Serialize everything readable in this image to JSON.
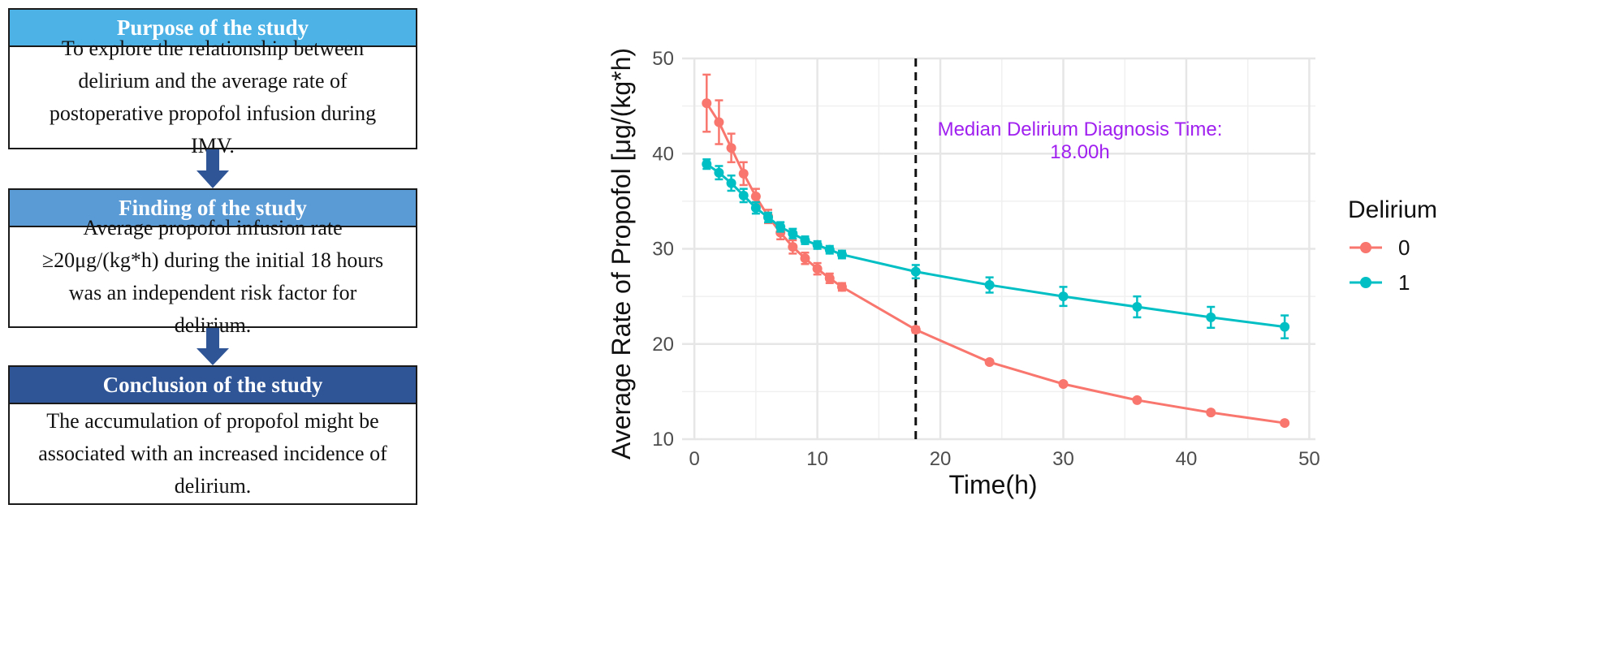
{
  "flow": {
    "purpose": {
      "title": "Purpose of the study",
      "body": "To explore the relationship between delirium and the average rate of postoperative propofol infusion during IMV.",
      "color": "#4db3e6"
    },
    "finding": {
      "title": "Finding of the study",
      "body": "Average propofol infusion rate ≥20μg/(kg*h) during the initial 18 hours was an independent risk factor for delirium.",
      "color": "#5b9bd5"
    },
    "conclusion": {
      "title": "Conclusion of the study",
      "body": "The accumulation of propofol might be associated with an increased incidence of delirium.",
      "color": "#2f5597"
    },
    "arrow_color": "#2f5597"
  },
  "chart_data": {
    "type": "line",
    "xlabel": "Time(h)",
    "ylabel": "Average Rate of Propofol [μg/(kg*h)]",
    "xlim": [
      -1,
      50.5
    ],
    "ylim": [
      10,
      50
    ],
    "xticks": [
      0,
      10,
      20,
      30,
      40,
      50
    ],
    "yticks": [
      10,
      20,
      30,
      40,
      50
    ],
    "grid": true,
    "legend": {
      "title": "Delirium",
      "position": "right"
    },
    "vline": {
      "x": 18,
      "style": "dashed",
      "label": "Median Delirium Diagnosis Time:",
      "label2": "18.00h",
      "label_color": "#a020f0"
    },
    "series": [
      {
        "name": "0",
        "color": "#f8766d",
        "x": [
          1,
          2,
          3,
          4,
          5,
          6,
          7,
          8,
          9,
          10,
          11,
          12,
          18,
          24,
          30,
          36,
          42,
          48
        ],
        "y": [
          45.3,
          43.3,
          40.6,
          37.9,
          35.5,
          33.4,
          31.7,
          30.2,
          29.0,
          27.9,
          26.9,
          26.0,
          21.5,
          18.1,
          15.8,
          14.1,
          12.8,
          11.7
        ],
        "err": [
          3.0,
          2.3,
          1.5,
          1.2,
          0.8,
          0.7,
          0.7,
          0.7,
          0.6,
          0.6,
          0.5,
          0.4,
          0.3,
          0.2,
          0.2,
          0.2,
          0.2,
          0.2
        ]
      },
      {
        "name": "1",
        "color": "#00bfc4",
        "x": [
          1,
          2,
          3,
          4,
          5,
          6,
          7,
          8,
          9,
          10,
          11,
          12,
          18,
          24,
          30,
          36,
          42,
          48
        ],
        "y": [
          38.9,
          38.0,
          36.9,
          35.6,
          34.3,
          33.3,
          32.3,
          31.6,
          30.9,
          30.4,
          29.9,
          29.4,
          27.6,
          26.2,
          25.0,
          23.9,
          22.8,
          21.8
        ],
        "err": [
          0.5,
          0.7,
          0.8,
          0.7,
          0.6,
          0.5,
          0.5,
          0.5,
          0.4,
          0.4,
          0.4,
          0.4,
          0.7,
          0.8,
          1.0,
          1.1,
          1.1,
          1.2
        ]
      }
    ]
  }
}
